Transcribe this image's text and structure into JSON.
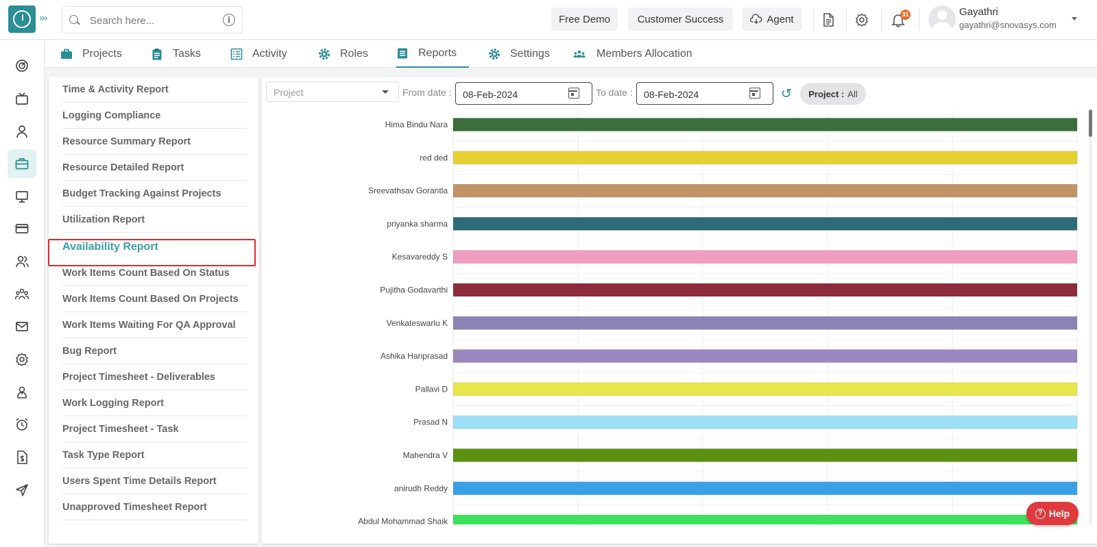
{
  "search": {
    "placeholder": "Search here..."
  },
  "topbar": {
    "free_demo": "Free Demo",
    "customer_success": "Customer Success",
    "agent": "Agent",
    "notification_count": "31",
    "user_name": "Gayathri",
    "user_email": "gayathri@snovasys.com"
  },
  "nav": {
    "tabs": [
      {
        "label": "Projects",
        "icon": "briefcase-icon"
      },
      {
        "label": "Tasks",
        "icon": "clipboard-icon"
      },
      {
        "label": "Activity",
        "icon": "list-icon"
      },
      {
        "label": "Roles",
        "icon": "gear-icon"
      },
      {
        "label": "Reports",
        "icon": "report-icon",
        "active": true
      },
      {
        "label": "Settings",
        "icon": "gear-icon"
      },
      {
        "label": "Members Allocation",
        "icon": "people-icon"
      }
    ]
  },
  "sidebar_icons": [
    "dashboard-icon",
    "tv-icon",
    "user-icon",
    "briefcase-icon",
    "monitor-icon",
    "card-icon",
    "users-icon",
    "team-icon",
    "mail-icon",
    "settings-icon",
    "profile-icon",
    "alarm-icon",
    "invoice-icon",
    "send-icon"
  ],
  "reports": {
    "items": [
      "Time & Activity Report",
      "Logging Compliance",
      "Resource Summary Report",
      "Resource Detailed Report",
      "Budget Tracking Against Projects",
      "Utilization Report",
      "Availability Report",
      "Work Items Count Based On Status",
      "Work Items Count Based On Projects",
      "Work Items Waiting For QA Approval",
      "Bug Report",
      "Project Timesheet - Deliverables",
      "Work Logging Report",
      "Project Timesheet - Task",
      "Task Type Report",
      "Users Spent Time Details Report",
      "Unapproved Timesheet Report"
    ],
    "active_index": 6
  },
  "filters": {
    "project_placeholder": "Project",
    "from_label": "From date :",
    "from_value": "08-Feb-2024",
    "to_label": "To date :",
    "to_value": "08-Feb-2024",
    "chip_key": "Project :",
    "chip_value": "All"
  },
  "chart_data": {
    "type": "bar",
    "orientation": "horizontal",
    "categories": [
      "Hima Bindu Nara",
      "red ded",
      "Sreevathsav Gorantla",
      "priyanka sharma",
      "Kesavareddy S",
      "Pujitha Godavarthi",
      "Venkateswarlu K",
      "Ashika Hariprasad",
      "Pallavi D",
      "Prasad N",
      "Mahendra V",
      "anirudh Reddy",
      "Abdul Mohammad Shaik"
    ],
    "values": [
      1,
      1,
      1,
      1,
      1,
      1,
      1,
      1,
      1,
      1,
      1,
      1,
      1
    ],
    "colors": [
      "#3b6e3b",
      "#e6d232",
      "#c09466",
      "#2e6b78",
      "#f09cc0",
      "#8e2c3c",
      "#8b82b8",
      "#9c88be",
      "#e8e64a",
      "#9ddff7",
      "#5a9210",
      "#3aa0e6",
      "#3ee15a"
    ],
    "xlim": [
      0,
      1
    ],
    "grid": true
  },
  "help": {
    "label": "Help"
  }
}
